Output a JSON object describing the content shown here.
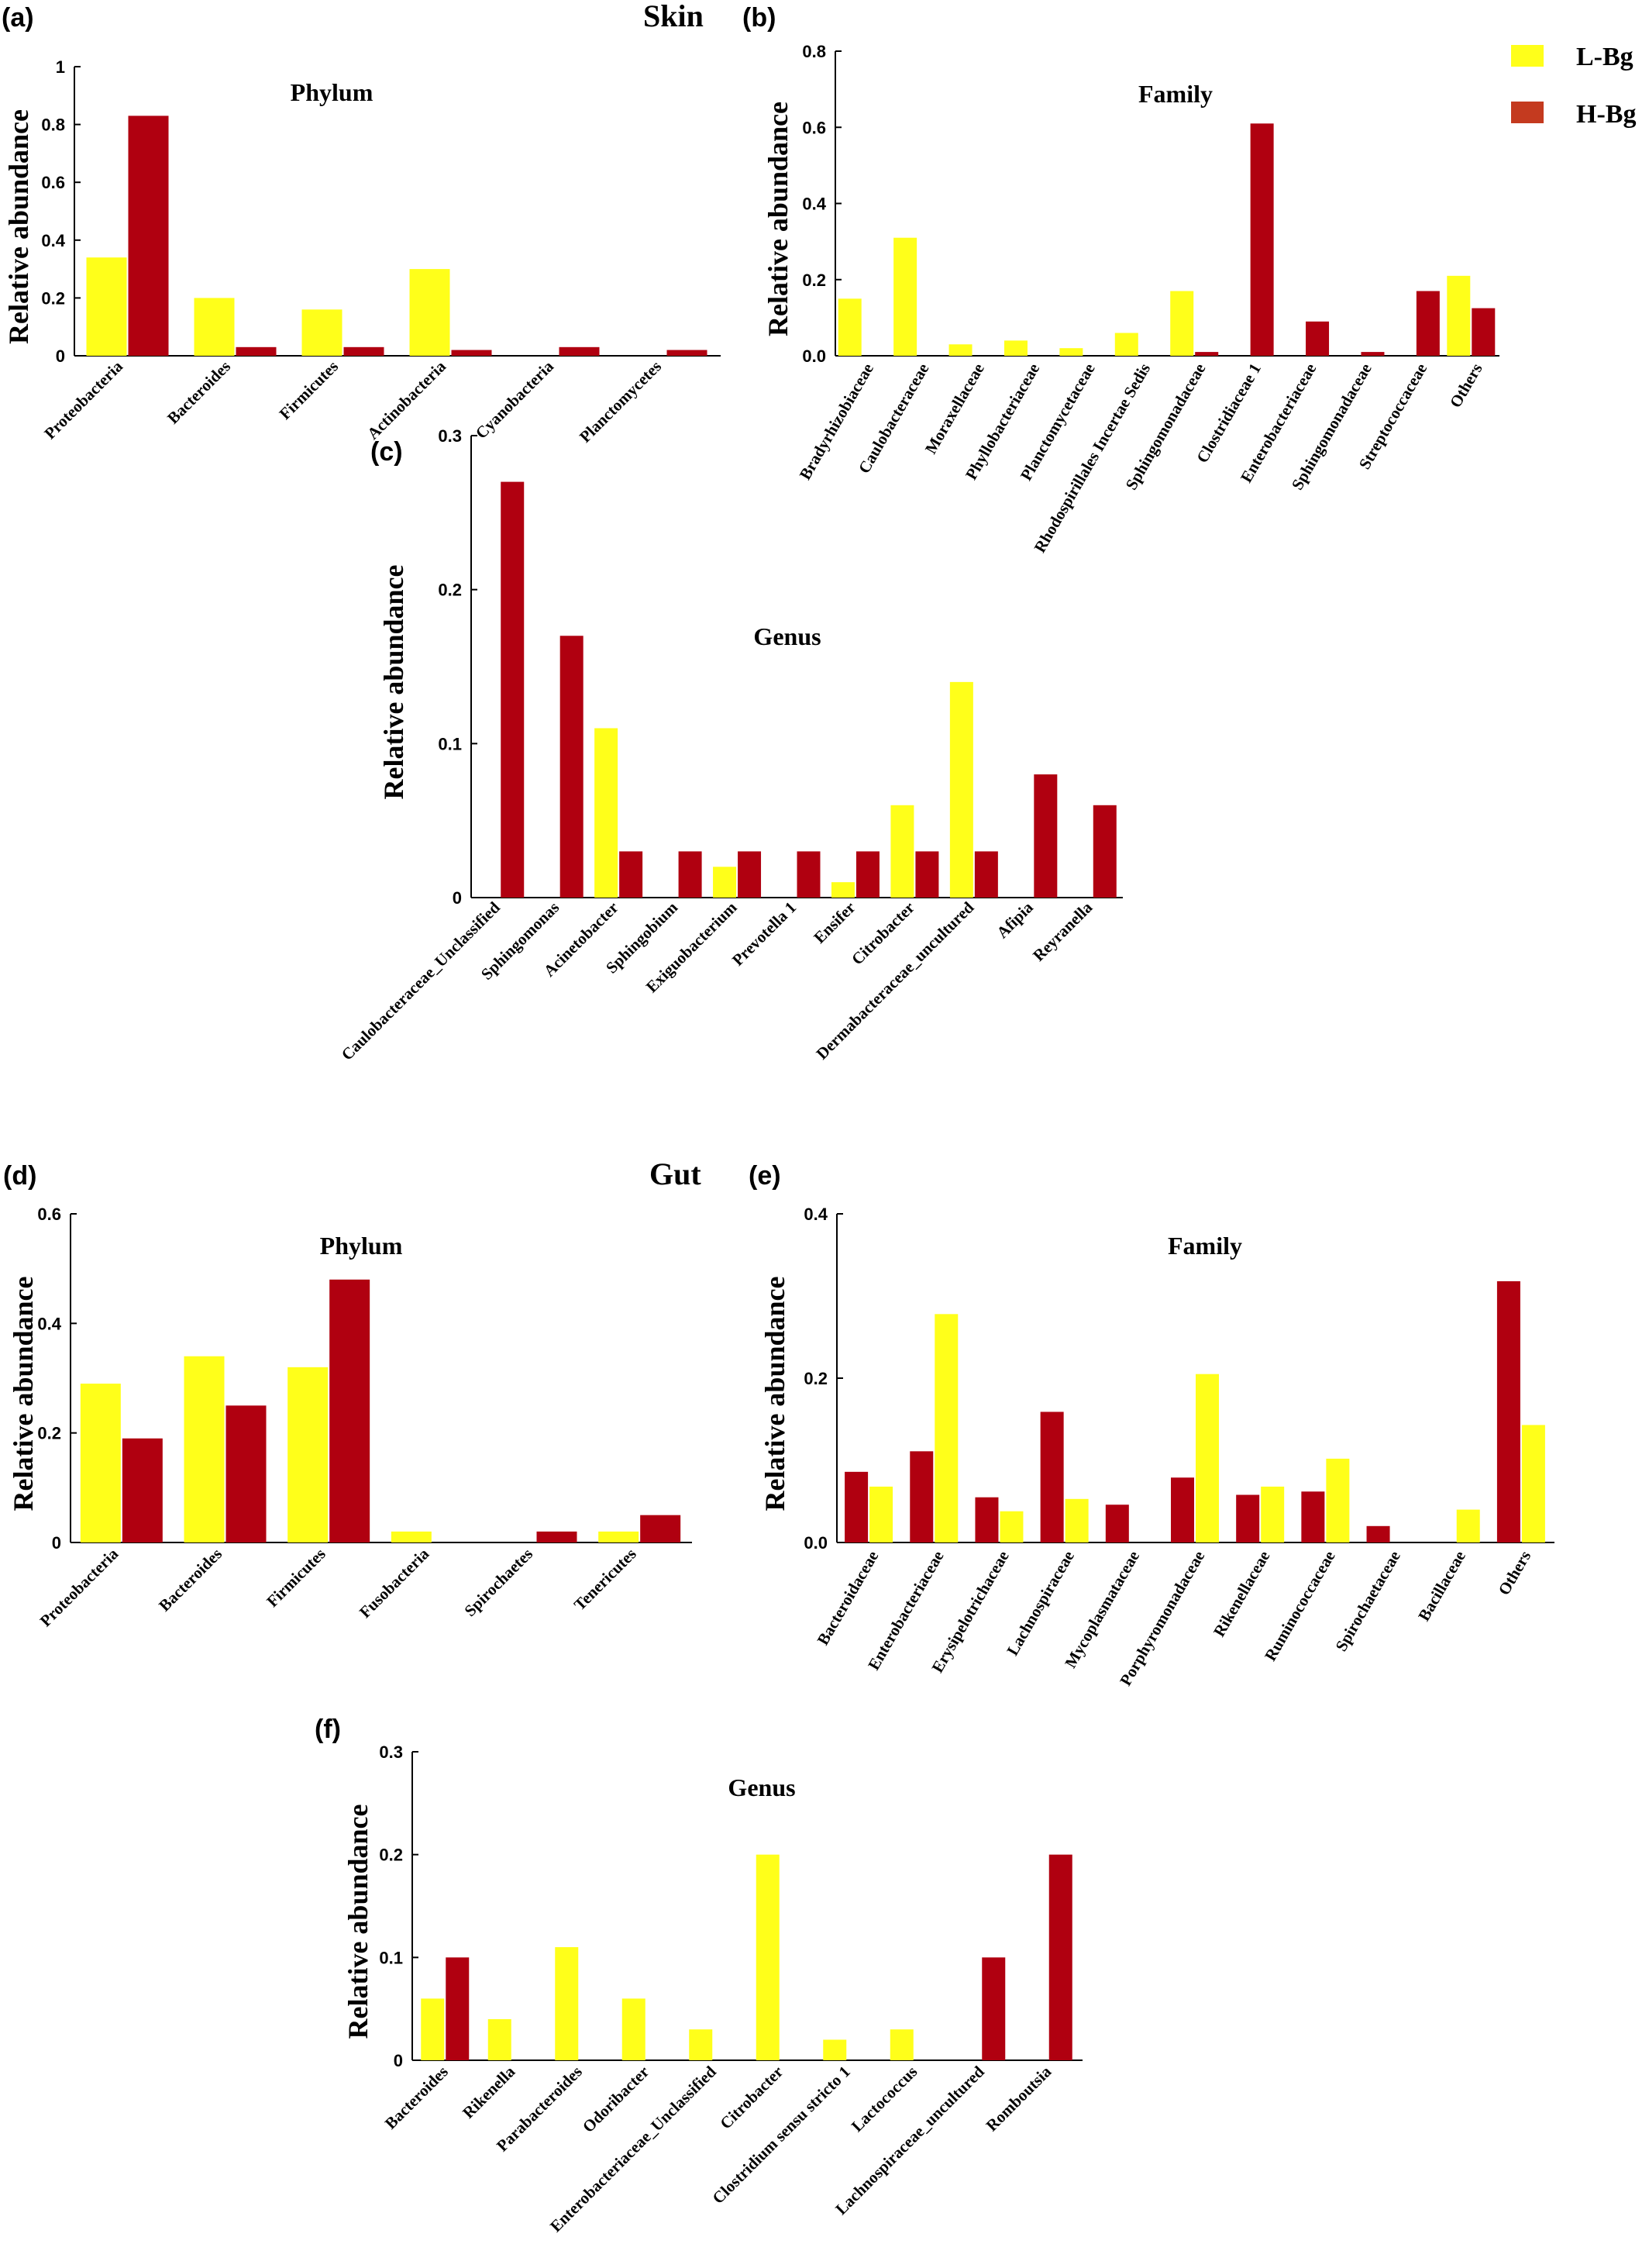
{
  "colors": {
    "l_bg": "#FFFF1A",
    "h_bg": "#B00010",
    "legend_h_bg": "#C43A1F"
  },
  "sections": {
    "skin": "Skin",
    "gut": "Gut"
  },
  "legend": {
    "l_label": "L-Bg",
    "h_label": "H-Bg"
  },
  "chart_data": [
    {
      "id": "a",
      "panel": "(a)",
      "type": "bar",
      "title": "Phylum",
      "ylabel": "Relative  abundance",
      "ylim": [
        0,
        1
      ],
      "yticks": [
        "0",
        "0.2",
        "0.4",
        "0.6",
        "0.8",
        "1"
      ],
      "categories": [
        "Proteobacteria",
        "Bacteroides",
        "Firmicutes",
        "Actinobacteria",
        "Cyanobacteria",
        "Planctomycetes"
      ],
      "series": [
        {
          "name": "L-Bg",
          "values": [
            0.34,
            0.2,
            0.16,
            0.3,
            0,
            0
          ]
        },
        {
          "name": "H-Bg",
          "values": [
            0.83,
            0.03,
            0.03,
            0.02,
            0.03,
            0.02
          ]
        }
      ]
    },
    {
      "id": "b",
      "panel": "(b)",
      "type": "bar",
      "title": "Family",
      "ylabel": "Relative  abundance",
      "ylim": [
        0,
        0.8
      ],
      "yticks": [
        "0.0",
        "0.2",
        "0.4",
        "0.6",
        "0.8"
      ],
      "categories": [
        "Bradyrhizobiaceae",
        "Caulobacteraceae",
        "Moraxellaceae",
        "Phyllobacteriaceae",
        "Planctomycetaceae",
        "Rhodospirillales Incertae Sedis",
        "Sphingomonadaceae",
        "Clostridiaceae 1",
        "Enterobacteriaceae",
        "Sphingomonadaceae",
        "Streptococcaceae",
        "Others"
      ],
      "series": [
        {
          "name": "L-Bg",
          "values": [
            0.15,
            0.31,
            0.03,
            0.04,
            0.02,
            0.06,
            0.17,
            0,
            0,
            0,
            0,
            0.21
          ]
        },
        {
          "name": "H-Bg",
          "values": [
            0,
            0,
            0,
            0,
            0,
            0,
            0.01,
            0.61,
            0.09,
            0.01,
            0.17,
            0.125
          ]
        }
      ]
    },
    {
      "id": "c",
      "panel": "(c)",
      "type": "bar",
      "title": "Genus",
      "ylabel": "Relative  abundance",
      "ylim": [
        0,
        0.3
      ],
      "yticks": [
        "0",
        "0.1",
        "0.2",
        "0.3"
      ],
      "categories": [
        "Caulobacteraceae_Unclassified",
        "Sphingomonas",
        "Acinetobacter",
        "Sphingobium",
        "Exiguobacterium",
        "Prevotella 1",
        "Ensifer",
        "Citrobacter",
        "Dermabacteraceae_uncultured",
        "Afipia",
        "Reyranella"
      ],
      "series": [
        {
          "name": "L-Bg",
          "values": [
            0,
            0,
            0.11,
            0,
            0.02,
            0,
            0.01,
            0.06,
            0.14,
            0,
            0
          ]
        },
        {
          "name": "H-Bg",
          "values": [
            0.27,
            0.17,
            0.03,
            0.03,
            0.03,
            0.03,
            0.03,
            0.03,
            0.03,
            0.08,
            0.06
          ]
        }
      ]
    },
    {
      "id": "d",
      "panel": "(d)",
      "type": "bar",
      "title": "Phylum",
      "ylabel": "Relative  abundance",
      "ylim": [
        0,
        0.6
      ],
      "yticks": [
        "0",
        "0.2",
        "0.4",
        "0.6"
      ],
      "categories": [
        "Proteobacteria",
        "Bacteroides",
        "Firmicutes",
        "Fusobacteria",
        "Spirochaetes",
        "Tenericutes"
      ],
      "series": [
        {
          "name": "L-Bg",
          "values": [
            0.29,
            0.34,
            0.32,
            0.02,
            0,
            0.02
          ]
        },
        {
          "name": "H-Bg",
          "values": [
            0.19,
            0.25,
            0.48,
            0,
            0.02,
            0.05
          ]
        }
      ]
    },
    {
      "id": "e",
      "panel": "(e)",
      "type": "bar",
      "title": "Family",
      "ylabel": "Relative abundance",
      "ylim": [
        0,
        0.4
      ],
      "yticks": [
        "0.0",
        "0.2",
        "0.4"
      ],
      "categories": [
        "Bacteroidaceae",
        "Enterobacteriaceae",
        "Erysipelotrichaceae",
        "Lachnospiraceae",
        "Mycoplasmataceae",
        "Porphyromonadaceae",
        "Rikenellaceae",
        "Ruminococcaceae",
        "Spirochaetaceae",
        "Bacillaceae",
        "Others"
      ],
      "series": [
        {
          "name": "H-Bg",
          "values": [
            0.086,
            0.111,
            0.055,
            0.159,
            0.046,
            0.079,
            0.058,
            0.062,
            0.02,
            0,
            0.318
          ]
        },
        {
          "name": "L-Bg",
          "values": [
            0.068,
            0.278,
            0.038,
            0.053,
            0,
            0.205,
            0.068,
            0.102,
            0,
            0.04,
            0.143
          ]
        }
      ]
    },
    {
      "id": "f",
      "panel": "(f)",
      "type": "bar",
      "title": "Genus",
      "ylabel": "Relative  abundance",
      "ylim": [
        0,
        0.3
      ],
      "yticks": [
        "0",
        "0.1",
        "0.2",
        "0.3"
      ],
      "categories": [
        "Bacteroides",
        "Rikenella",
        "Parabacteroides",
        "Odoribacter",
        "Enterobacteriaceae_Unclassified",
        "Citrobacter",
        "Clostridium sensu stricto 1",
        "Lactococcus",
        "Lachnospiraceae_uncultured",
        "Romboutsia"
      ],
      "series": [
        {
          "name": "L-Bg",
          "values": [
            0.06,
            0.04,
            0.11,
            0.06,
            0.03,
            0.2,
            0.02,
            0.03,
            0,
            0
          ]
        },
        {
          "name": "H-Bg",
          "values": [
            0.1,
            0,
            0,
            0,
            0,
            0,
            0,
            0,
            0.1,
            0.2
          ]
        }
      ]
    }
  ]
}
